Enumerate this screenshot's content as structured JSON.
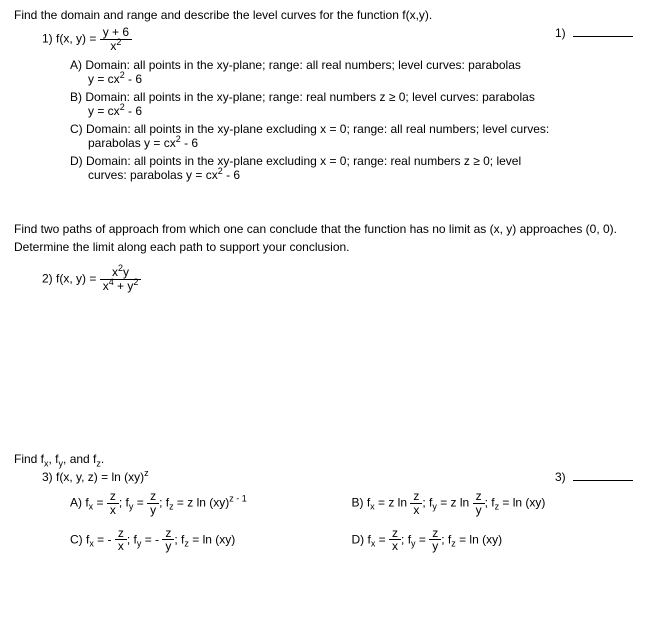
{
  "q1": {
    "prompt": "Find the domain and range and describe the level curves for the function f(x,y).",
    "label": "1) f(x, y) = ",
    "frac_num": "y + 6",
    "frac_den": "x",
    "frac_den_exp": "2",
    "right_label": "1)",
    "choices": {
      "A": {
        "line1": "A) Domain: all points in the xy-plane; range: all real numbers; level curves: parabolas",
        "line2_pre": "y = cx",
        "line2_exp": "2",
        "line2_post": " - 6"
      },
      "B": {
        "line1": "B) Domain: all points in the xy-plane; range: real numbers z ≥ 0; level curves: parabolas",
        "line2_pre": "y = cx",
        "line2_exp": "2",
        "line2_post": " - 6"
      },
      "C": {
        "line1": "C) Domain: all points in the xy-plane excluding x = 0; range: all real numbers; level curves:",
        "line2_pre": "parabolas y = cx",
        "line2_exp": "2",
        "line2_post": " - 6"
      },
      "D": {
        "line1": "D) Domain: all points in the xy-plane excluding x = 0; range: real numbers z ≥ 0; level",
        "line2_pre": "curves: parabolas y = cx",
        "line2_exp": "2",
        "line2_post": " - 6"
      }
    }
  },
  "q2": {
    "prompt1": "Find two paths of approach from which one can conclude that the function has no limit as (x, y) approaches (0, 0).",
    "prompt2": "Determine the limit along each path to support your conclusion.",
    "label": "2) f(x, y) = ",
    "num_a": "x",
    "num_a_exp": "2",
    "num_b": "y",
    "den_a": "x",
    "den_a_exp": "4",
    "den_mid": " + y",
    "den_b_exp": "2"
  },
  "q3": {
    "prompt_pre": "Find f",
    "sx": "x",
    "prompt_mid1": ", f",
    "sy": "y",
    "prompt_mid2": ", and f",
    "sz": "z",
    "prompt_post": ".",
    "eq_label": "3) f(x, y, z) = ln (xy)",
    "eq_exp": "z",
    "right_label": "3)",
    "A": {
      "p1": "A) f",
      "s1": "x",
      "p2": " = ",
      "f1n": "z",
      "f1d": "x",
      "p3": "; f",
      "s2": "y",
      "p4": " = ",
      "f2n": "z",
      "f2d": "y",
      "p5": "; f",
      "s3": "z",
      "p6": " = z ln (xy)",
      "exp": "z - 1"
    },
    "B": {
      "p1": "B) f",
      "s1": "x",
      "p2": " = z ln ",
      "f1n": "z",
      "f1d": "x",
      "p3": "; f",
      "s2": "y",
      "p4": " = z ln ",
      "f2n": "z",
      "f2d": "y",
      "p5": "; f",
      "s3": "z",
      "p6": " = ln (xy)"
    },
    "C": {
      "p1": "C) f",
      "s1": "x",
      "p2": " = - ",
      "f1n": "z",
      "f1d": "x",
      "p3": "; f",
      "s2": "y",
      "p4": " = - ",
      "f2n": "z",
      "f2d": "y",
      "p5": "; f",
      "s3": "z",
      "p6": " = ln (xy)"
    },
    "D": {
      "p1": "D) f",
      "s1": "x",
      "p2": " = ",
      "f1n": "z",
      "f1d": "x",
      "p3": "; f",
      "s2": "y",
      "p4": " = ",
      "f2n": "z",
      "f2d": "y",
      "p5": "; f",
      "s3": "z",
      "p6": " = ln (xy)"
    }
  }
}
